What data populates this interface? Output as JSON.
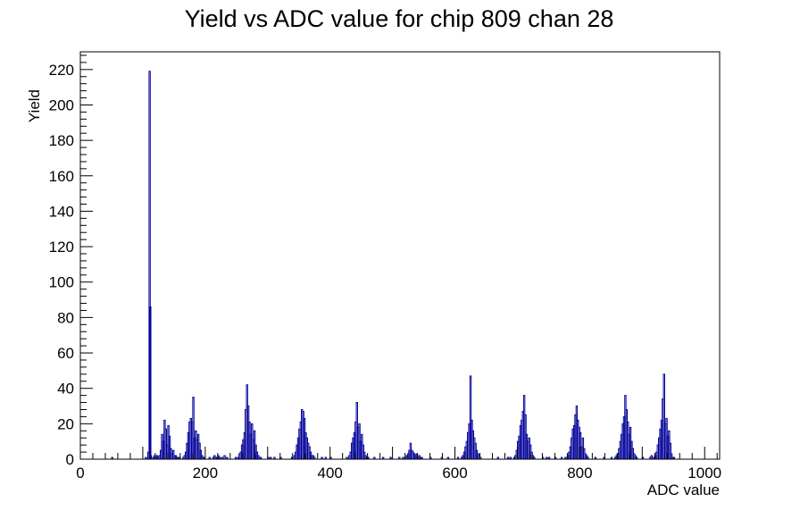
{
  "chart_data": {
    "type": "histogram",
    "title": "Yield vs ADC value for chip 809 chan 28",
    "xlabel": "ADC value",
    "ylabel": "Yield",
    "xlim": [
      0,
      1024
    ],
    "ylim": [
      0,
      230
    ],
    "x_ticks": [
      0,
      200,
      400,
      600,
      800,
      1000
    ],
    "y_ticks": [
      0,
      20,
      40,
      60,
      80,
      100,
      120,
      140,
      160,
      180,
      200,
      220
    ],
    "grid": false,
    "legend": "none",
    "color": "#000099",
    "bin_width": 2,
    "bins": [
      [
        50,
        1
      ],
      [
        104,
        1
      ],
      [
        108,
        4
      ],
      [
        110,
        219
      ],
      [
        111,
        86
      ],
      [
        112,
        2
      ],
      [
        116,
        1
      ],
      [
        118,
        2
      ],
      [
        120,
        1
      ],
      [
        122,
        2
      ],
      [
        124,
        1
      ],
      [
        126,
        2
      ],
      [
        128,
        5
      ],
      [
        130,
        14
      ],
      [
        132,
        10
      ],
      [
        134,
        22
      ],
      [
        136,
        17
      ],
      [
        138,
        8
      ],
      [
        140,
        19
      ],
      [
        142,
        13
      ],
      [
        144,
        6
      ],
      [
        146,
        3
      ],
      [
        148,
        5
      ],
      [
        150,
        2
      ],
      [
        152,
        2
      ],
      [
        154,
        1
      ],
      [
        156,
        1
      ],
      [
        158,
        1
      ],
      [
        164,
        1
      ],
      [
        166,
        2
      ],
      [
        168,
        4
      ],
      [
        170,
        9
      ],
      [
        172,
        15
      ],
      [
        174,
        21
      ],
      [
        176,
        23
      ],
      [
        178,
        21
      ],
      [
        180,
        35
      ],
      [
        182,
        12
      ],
      [
        184,
        16
      ],
      [
        186,
        11
      ],
      [
        188,
        14
      ],
      [
        190,
        9
      ],
      [
        192,
        5
      ],
      [
        194,
        2
      ],
      [
        196,
        1
      ],
      [
        198,
        1
      ],
      [
        206,
        1
      ],
      [
        212,
        1
      ],
      [
        214,
        2
      ],
      [
        216,
        1
      ],
      [
        218,
        1
      ],
      [
        220,
        2
      ],
      [
        222,
        1
      ],
      [
        226,
        1
      ],
      [
        230,
        2
      ],
      [
        234,
        1
      ],
      [
        248,
        1
      ],
      [
        252,
        1
      ],
      [
        254,
        3
      ],
      [
        256,
        4
      ],
      [
        258,
        8
      ],
      [
        260,
        11
      ],
      [
        262,
        15
      ],
      [
        264,
        28
      ],
      [
        266,
        42
      ],
      [
        268,
        30
      ],
      [
        270,
        21
      ],
      [
        272,
        14
      ],
      [
        274,
        20
      ],
      [
        276,
        11
      ],
      [
        278,
        16
      ],
      [
        280,
        8
      ],
      [
        282,
        4
      ],
      [
        284,
        2
      ],
      [
        286,
        1
      ],
      [
        288,
        1
      ],
      [
        300,
        1
      ],
      [
        304,
        1
      ],
      [
        310,
        1
      ],
      [
        320,
        1
      ],
      [
        338,
        1
      ],
      [
        342,
        2
      ],
      [
        344,
        4
      ],
      [
        346,
        8
      ],
      [
        348,
        12
      ],
      [
        350,
        17
      ],
      [
        352,
        21
      ],
      [
        354,
        28
      ],
      [
        356,
        27
      ],
      [
        358,
        23
      ],
      [
        360,
        15
      ],
      [
        362,
        12
      ],
      [
        364,
        9
      ],
      [
        366,
        7
      ],
      [
        368,
        4
      ],
      [
        370,
        2
      ],
      [
        372,
        2
      ],
      [
        374,
        1
      ],
      [
        386,
        1
      ],
      [
        392,
        1
      ],
      [
        400,
        1
      ],
      [
        426,
        1
      ],
      [
        430,
        2
      ],
      [
        432,
        4
      ],
      [
        434,
        9
      ],
      [
        436,
        12
      ],
      [
        438,
        15
      ],
      [
        440,
        21
      ],
      [
        442,
        32
      ],
      [
        444,
        18
      ],
      [
        446,
        20
      ],
      [
        448,
        10
      ],
      [
        450,
        14
      ],
      [
        452,
        8
      ],
      [
        454,
        4
      ],
      [
        456,
        2
      ],
      [
        458,
        1
      ],
      [
        460,
        1
      ],
      [
        470,
        1
      ],
      [
        484,
        1
      ],
      [
        496,
        1
      ],
      [
        510,
        1
      ],
      [
        516,
        1
      ],
      [
        520,
        1
      ],
      [
        522,
        2
      ],
      [
        524,
        3
      ],
      [
        526,
        5
      ],
      [
        528,
        9
      ],
      [
        530,
        5
      ],
      [
        532,
        4
      ],
      [
        534,
        3
      ],
      [
        536,
        2
      ],
      [
        538,
        3
      ],
      [
        540,
        1
      ],
      [
        542,
        2
      ],
      [
        544,
        1
      ],
      [
        546,
        1
      ],
      [
        560,
        1
      ],
      [
        578,
        1
      ],
      [
        588,
        1
      ],
      [
        604,
        1
      ],
      [
        610,
        1
      ],
      [
        612,
        2
      ],
      [
        614,
        4
      ],
      [
        616,
        7
      ],
      [
        618,
        10
      ],
      [
        620,
        15
      ],
      [
        622,
        20
      ],
      [
        624,
        47
      ],
      [
        626,
        22
      ],
      [
        628,
        16
      ],
      [
        630,
        12
      ],
      [
        632,
        9
      ],
      [
        634,
        5
      ],
      [
        636,
        3
      ],
      [
        638,
        2
      ],
      [
        640,
        1
      ],
      [
        668,
        1
      ],
      [
        684,
        1
      ],
      [
        688,
        1
      ],
      [
        694,
        1
      ],
      [
        696,
        2
      ],
      [
        698,
        5
      ],
      [
        700,
        10
      ],
      [
        702,
        13
      ],
      [
        704,
        19
      ],
      [
        706,
        22
      ],
      [
        708,
        27
      ],
      [
        710,
        36
      ],
      [
        712,
        25
      ],
      [
        714,
        14
      ],
      [
        716,
        10
      ],
      [
        718,
        12
      ],
      [
        720,
        8
      ],
      [
        722,
        4
      ],
      [
        724,
        2
      ],
      [
        726,
        1
      ],
      [
        740,
        1
      ],
      [
        746,
        1
      ],
      [
        750,
        1
      ],
      [
        760,
        1
      ],
      [
        770,
        1
      ],
      [
        776,
        1
      ],
      [
        780,
        2
      ],
      [
        782,
        4
      ],
      [
        784,
        7
      ],
      [
        786,
        12
      ],
      [
        788,
        17
      ],
      [
        790,
        19
      ],
      [
        792,
        25
      ],
      [
        794,
        30
      ],
      [
        796,
        22
      ],
      [
        798,
        18
      ],
      [
        800,
        15
      ],
      [
        802,
        7
      ],
      [
        804,
        12
      ],
      [
        806,
        6
      ],
      [
        808,
        3
      ],
      [
        810,
        2
      ],
      [
        812,
        1
      ],
      [
        824,
        1
      ],
      [
        838,
        1
      ],
      [
        850,
        1
      ],
      [
        856,
        1
      ],
      [
        858,
        2
      ],
      [
        860,
        3
      ],
      [
        862,
        6
      ],
      [
        864,
        10
      ],
      [
        866,
        14
      ],
      [
        868,
        20
      ],
      [
        870,
        24
      ],
      [
        872,
        36
      ],
      [
        874,
        28
      ],
      [
        876,
        21
      ],
      [
        878,
        14
      ],
      [
        880,
        18
      ],
      [
        882,
        10
      ],
      [
        884,
        6
      ],
      [
        886,
        3
      ],
      [
        888,
        2
      ],
      [
        890,
        1
      ],
      [
        900,
        1
      ],
      [
        912,
        1
      ],
      [
        914,
        2
      ],
      [
        918,
        1
      ],
      [
        920,
        2
      ],
      [
        922,
        4
      ],
      [
        924,
        8
      ],
      [
        926,
        12
      ],
      [
        928,
        17
      ],
      [
        930,
        22
      ],
      [
        932,
        34
      ],
      [
        934,
        48
      ],
      [
        936,
        20
      ],
      [
        938,
        23
      ],
      [
        940,
        13
      ],
      [
        942,
        16
      ],
      [
        944,
        9
      ],
      [
        946,
        3
      ],
      [
        948,
        1
      ],
      [
        950,
        1
      ]
    ]
  }
}
